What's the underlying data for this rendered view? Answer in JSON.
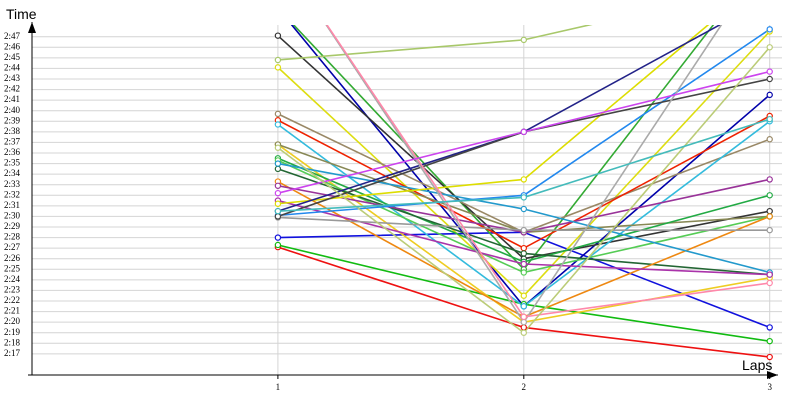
{
  "chart_data": {
    "type": "line",
    "y_label": "Time",
    "x_label": "Laps",
    "x": [
      1,
      2,
      3
    ],
    "xlim": [
      0,
      3.05
    ],
    "xticks": [
      1,
      2,
      3
    ],
    "ylim": [
      135,
      170
    ],
    "yticks": [
      {
        "value": 137,
        "label": "2:17"
      },
      {
        "value": 138,
        "label": "2:18"
      },
      {
        "value": 139,
        "label": "2:19"
      },
      {
        "value": 140,
        "label": "2:20"
      },
      {
        "value": 141,
        "label": "2:21"
      },
      {
        "value": 142,
        "label": "2:22"
      },
      {
        "value": 143,
        "label": "2:23"
      },
      {
        "value": 144,
        "label": "2:24"
      },
      {
        "value": 145,
        "label": "2:25"
      },
      {
        "value": 146,
        "label": "2:26"
      },
      {
        "value": 147,
        "label": "2:27"
      },
      {
        "value": 148,
        "label": "2:28"
      },
      {
        "value": 149,
        "label": "2:29"
      },
      {
        "value": 150,
        "label": "2:30"
      },
      {
        "value": 151,
        "label": "2:31"
      },
      {
        "value": 152,
        "label": "2:32"
      },
      {
        "value": 153,
        "label": "2:33"
      },
      {
        "value": 154,
        "label": "2:34"
      },
      {
        "value": 155,
        "label": "2:35"
      },
      {
        "value": 156,
        "label": "2:36"
      },
      {
        "value": 157,
        "label": "2:37"
      },
      {
        "value": 158,
        "label": "2:38"
      },
      {
        "value": 159,
        "label": "2:39"
      },
      {
        "value": 160,
        "label": "2:40"
      },
      {
        "value": 161,
        "label": "2:41"
      },
      {
        "value": 162,
        "label": "2:42"
      },
      {
        "value": 163,
        "label": "2:43"
      },
      {
        "value": 164,
        "label": "2:44"
      },
      {
        "value": 165,
        "label": "2:45"
      },
      {
        "value": 166,
        "label": "2:46"
      },
      {
        "value": 167,
        "label": "2:47"
      }
    ],
    "grid": true,
    "series": [
      {
        "color": "#ee1111",
        "values": [
          147.1,
          139.5,
          136.7
        ]
      },
      {
        "color": "#11bb11",
        "values": [
          147.3,
          141.7,
          138.2
        ]
      },
      {
        "color": "#1111dd",
        "values": [
          148,
          148.5,
          139.5
        ]
      },
      {
        "color": "#33aa33",
        "values": [
          169.7,
          145,
          175
        ]
      },
      {
        "color": "#0000aa",
        "values": [
          169.7,
          141.5,
          161.5
        ]
      },
      {
        "color": "#333333",
        "values": [
          167.1,
          146,
          150.5
        ]
      },
      {
        "color": "#a8c86a",
        "values": [
          164.8,
          166.7,
          172
        ]
      },
      {
        "color": "#dddd11",
        "values": [
          164.1,
          142.5,
          167.5
        ]
      },
      {
        "color": "#998866",
        "values": [
          159.7,
          148.5,
          157.3
        ]
      },
      {
        "color": "#ee2200",
        "values": [
          159.1,
          147,
          159.5
        ]
      },
      {
        "color": "#33bbdd",
        "values": [
          158.7,
          141.5,
          159
        ]
      },
      {
        "color": "#eecc22",
        "values": [
          156.8,
          140,
          144.2
        ]
      },
      {
        "color": "#888855",
        "values": [
          156.8,
          148.5,
          150
        ]
      },
      {
        "color": "#22aa44",
        "values": [
          155.5,
          145.7,
          152
        ]
      },
      {
        "color": "#55cc55",
        "values": [
          155.3,
          144.7,
          150
        ]
      },
      {
        "color": "#226633",
        "values": [
          154.5,
          146.5,
          144.5
        ]
      },
      {
        "color": "#ee8811",
        "values": [
          153.3,
          140.5,
          150
        ]
      },
      {
        "color": "#993399",
        "values": [
          152.9,
          148.5,
          153.5
        ]
      },
      {
        "color": "#2299cc",
        "values": [
          155,
          150.7,
          144.7
        ]
      },
      {
        "color": "#aa33aa",
        "values": [
          151.5,
          145.5,
          144.5
        ]
      },
      {
        "color": "#dddd00",
        "values": [
          151.2,
          153.5,
          173
        ]
      },
      {
        "color": "#222288",
        "values": [
          150.5,
          158,
          170.7
        ]
      },
      {
        "color": "#2288ee",
        "values": [
          150.1,
          152,
          167.7
        ]
      },
      {
        "color": "#999999",
        "values": [
          149.9,
          148.7,
          148.7
        ]
      },
      {
        "color": "#444444",
        "values": [
          150,
          158,
          163
        ]
      },
      {
        "color": "#aaaaaa",
        "values": [
          175,
          140,
          175
        ]
      },
      {
        "color": "#ff88aa",
        "values": [
          175,
          140.5,
          143.7
        ]
      },
      {
        "color": "#cc44ee",
        "values": [
          152.2,
          158,
          163.7
        ]
      },
      {
        "color": "#bbcc77",
        "values": [
          156.5,
          139,
          166
        ]
      },
      {
        "color": "#44bbbb",
        "values": [
          150.5,
          151.8,
          159.2
        ]
      }
    ]
  }
}
